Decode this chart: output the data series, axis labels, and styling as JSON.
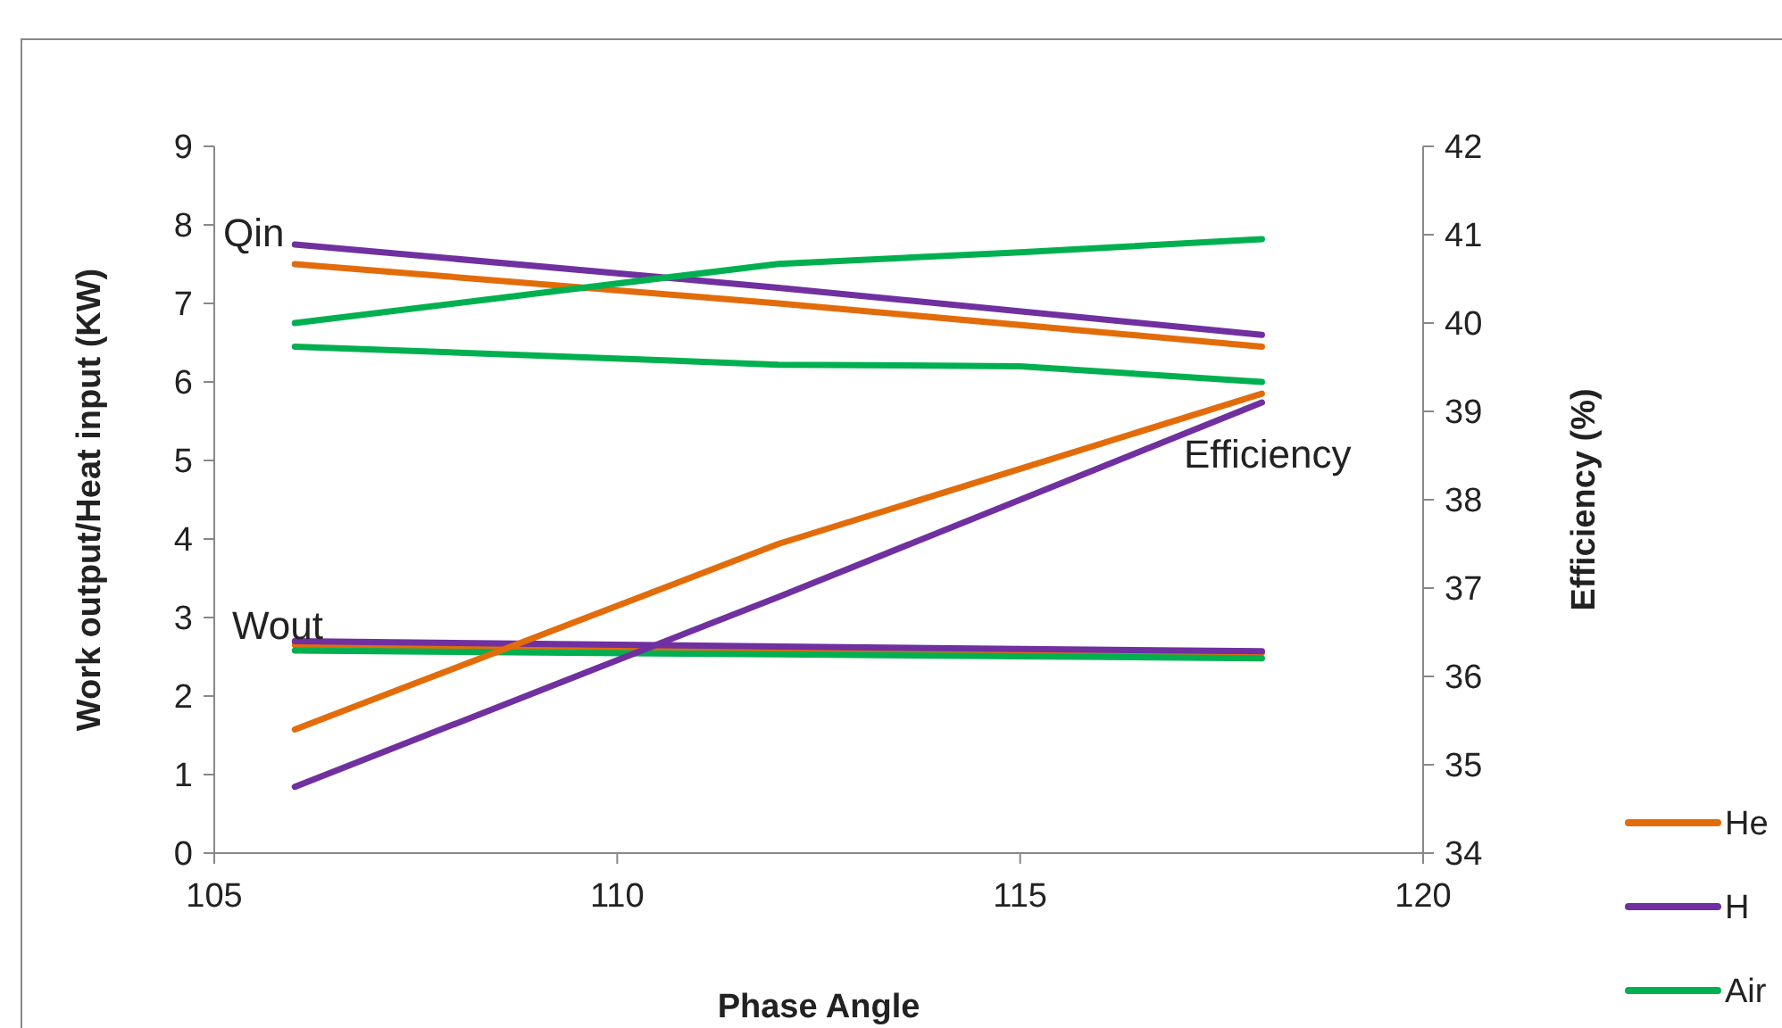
{
  "chart_data": {
    "type": "line",
    "xlabel": "Phase Angle",
    "ylabel": "Work output/Heat input (KW)",
    "y2label": "Efficiency (%)",
    "xlim": [
      105,
      120
    ],
    "xticks": [
      105,
      110,
      115,
      120
    ],
    "ylim": [
      0,
      9
    ],
    "yticks": [
      0,
      1,
      2,
      3,
      4,
      5,
      6,
      7,
      8,
      9
    ],
    "y2lim": [
      34,
      42
    ],
    "y2ticks": [
      34,
      35,
      36,
      37,
      38,
      39,
      40,
      41,
      42
    ],
    "legend": "bottom right",
    "grid": false,
    "line_style": "solid",
    "marker": "none",
    "annotations": [
      "Qin",
      "Wout",
      "Efficiency"
    ],
    "series": [
      {
        "name": "He",
        "color": "#e36c0a",
        "x": [
          106,
          112,
          118
        ],
        "values": [
          7.5,
          7.0,
          6.45
        ]
      },
      {
        "name": "H",
        "color": "#7030a0",
        "x": [
          106,
          112,
          118
        ],
        "values": [
          7.75,
          7.2,
          6.6
        ]
      },
      {
        "name": "Air",
        "color": "#00b050",
        "x": [
          106,
          112,
          115,
          118
        ],
        "values": [
          6.45,
          6.22,
          6.2,
          6.0
        ]
      },
      {
        "color": "#e36c0a",
        "x": [
          106,
          112,
          118
        ],
        "values": [
          2.65,
          2.6,
          2.55
        ]
      },
      {
        "color": "#00b050",
        "x": [
          106,
          112,
          118
        ],
        "values": [
          2.58,
          2.53,
          2.48
        ]
      },
      {
        "color": "#7030a0",
        "x": [
          106,
          112,
          118
        ],
        "values": [
          2.7,
          2.63,
          2.57
        ]
      },
      {
        "color": "#e36c0a",
        "axis": "y2",
        "x": [
          106,
          112,
          118
        ],
        "values": [
          35.4,
          37.5,
          39.2
        ]
      },
      {
        "color": "#7030a0",
        "axis": "y2",
        "x": [
          106,
          112,
          118
        ],
        "values": [
          34.75,
          36.9,
          39.1
        ]
      },
      {
        "color": "#00b050",
        "axis": "y2",
        "x": [
          106,
          112,
          115,
          118
        ],
        "values": [
          40.0,
          40.67,
          40.8,
          40.95
        ]
      }
    ]
  }
}
